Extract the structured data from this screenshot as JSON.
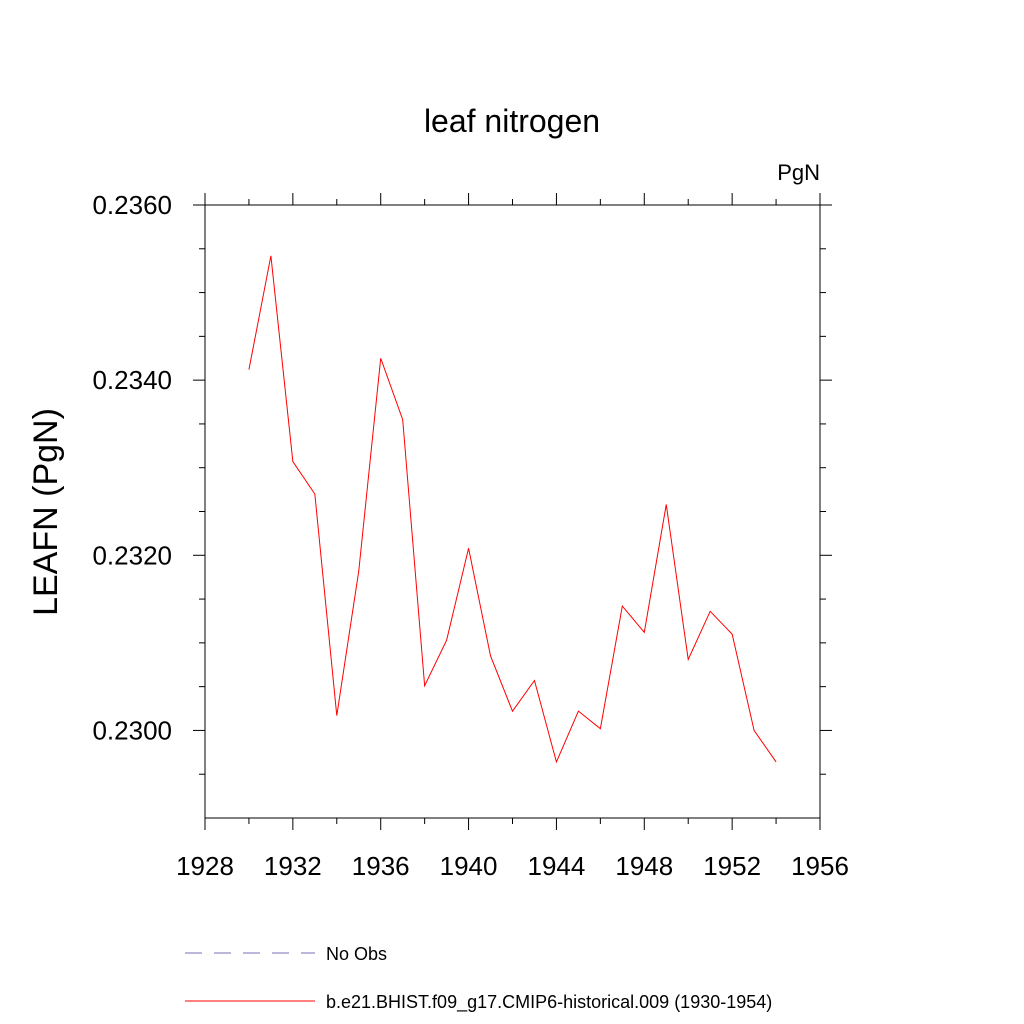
{
  "chart_data": {
    "type": "line",
    "title": "leaf nitrogen",
    "units_label": "PgN",
    "ylabel": "LEAFN  (PgN)",
    "xlabel": "",
    "xlim": [
      1928,
      1956
    ],
    "ylim": [
      0.229,
      0.236
    ],
    "x_ticks": [
      1928,
      1932,
      1936,
      1940,
      1944,
      1948,
      1952,
      1956
    ],
    "y_ticks": [
      0.23,
      0.232,
      0.234,
      0.236
    ],
    "y_tick_labels": [
      "0.2300",
      "0.2320",
      "0.2340",
      "0.2360"
    ],
    "grid": false,
    "legend_position": "bottom",
    "series": [
      {
        "name": "b.e21.BHIST.f09_g17.CMIP6-historical.009 (1930-1954)",
        "color": "#ff0000",
        "style": "solid",
        "x": [
          1930,
          1931,
          1932,
          1933,
          1934,
          1935,
          1936,
          1937,
          1938,
          1939,
          1940,
          1941,
          1942,
          1943,
          1944,
          1945,
          1946,
          1947,
          1948,
          1949,
          1950,
          1951,
          1952,
          1953,
          1954
        ],
        "y": [
          0.23412,
          0.23542,
          0.23307,
          0.2327,
          0.23017,
          0.23182,
          0.23425,
          0.23355,
          0.23051,
          0.23103,
          0.23208,
          0.23085,
          0.23022,
          0.23057,
          0.22964,
          0.23022,
          0.23002,
          0.23142,
          0.23112,
          0.23258,
          0.23081,
          0.23136,
          0.2311,
          0.23,
          0.22964
        ]
      }
    ],
    "legend": [
      {
        "label": "No Obs",
        "color": "#7a70b8",
        "style": "dashed"
      },
      {
        "label": "b.e21.BHIST.f09_g17.CMIP6-historical.009 (1930-1954)",
        "color": "#ff0000",
        "style": "solid"
      }
    ]
  }
}
